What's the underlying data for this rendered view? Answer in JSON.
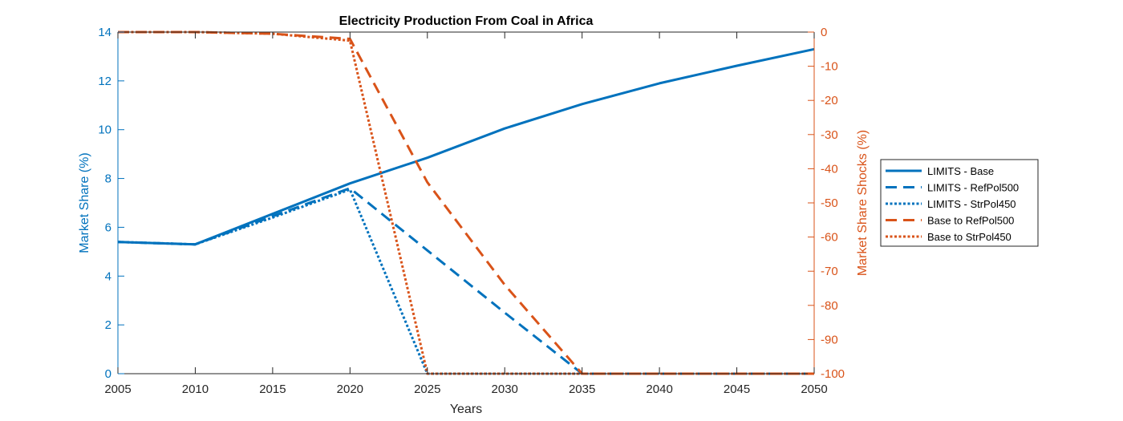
{
  "chart_data": {
    "type": "line",
    "title": "Electricity Production From Coal in Africa",
    "xlabel": "Years",
    "ylabel_left": "Market Share (%)",
    "ylabel_right": "Market Share Shocks (%)",
    "xlim": [
      2005,
      2050
    ],
    "ylim_left": [
      0,
      14
    ],
    "ylim_right": [
      -100,
      0
    ],
    "x_ticks": [
      2005,
      2010,
      2015,
      2020,
      2025,
      2030,
      2035,
      2040,
      2045,
      2050
    ],
    "y_ticks_left": [
      0,
      2,
      4,
      6,
      8,
      10,
      12,
      14
    ],
    "y_ticks_right": [
      0,
      -10,
      -20,
      -30,
      -40,
      -50,
      -60,
      -70,
      -80,
      -90,
      -100
    ],
    "grid": false,
    "legend_position": "outside-right",
    "colors": {
      "left": "#0072BD",
      "right": "#D95319"
    },
    "series": [
      {
        "name": "LIMITS - Base",
        "axis": "left",
        "style": "solid",
        "x": [
          2005,
          2010,
          2015,
          2020,
          2025,
          2030,
          2035,
          2040,
          2045,
          2050
        ],
        "y": [
          5.4,
          5.3,
          6.55,
          7.8,
          8.85,
          10.05,
          11.05,
          11.9,
          12.62,
          13.3
        ]
      },
      {
        "name": "LIMITS - RefPol500",
        "axis": "left",
        "style": "dashed",
        "x": [
          2005,
          2010,
          2015,
          2020,
          2025,
          2030,
          2035,
          2040,
          2045,
          2050
        ],
        "y": [
          5.4,
          5.3,
          6.45,
          7.6,
          5.05,
          2.5,
          0,
          0,
          0,
          0
        ]
      },
      {
        "name": "LIMITS - StrPol450",
        "axis": "left",
        "style": "dotted",
        "x": [
          2005,
          2010,
          2015,
          2020,
          2025,
          2030,
          2035,
          2040,
          2045,
          2050
        ],
        "y": [
          5.4,
          5.3,
          6.4,
          7.55,
          0,
          0,
          0,
          0,
          0,
          0
        ]
      },
      {
        "name": "Base to RefPol500",
        "axis": "right",
        "style": "dashed",
        "x": [
          2005,
          2010,
          2015,
          2020,
          2025,
          2030,
          2035,
          2040,
          2045,
          2050
        ],
        "y": [
          0,
          0,
          -0.5,
          -2,
          -44,
          -74,
          -100,
          -100,
          -100,
          -100
        ]
      },
      {
        "name": "Base to StrPol450",
        "axis": "right",
        "style": "dotted",
        "x": [
          2005,
          2010,
          2015,
          2020,
          2025,
          2030,
          2035,
          2040,
          2045,
          2050
        ],
        "y": [
          0,
          0,
          -0.5,
          -2.5,
          -100,
          -100,
          -100,
          -100,
          -100,
          -100
        ]
      }
    ]
  }
}
